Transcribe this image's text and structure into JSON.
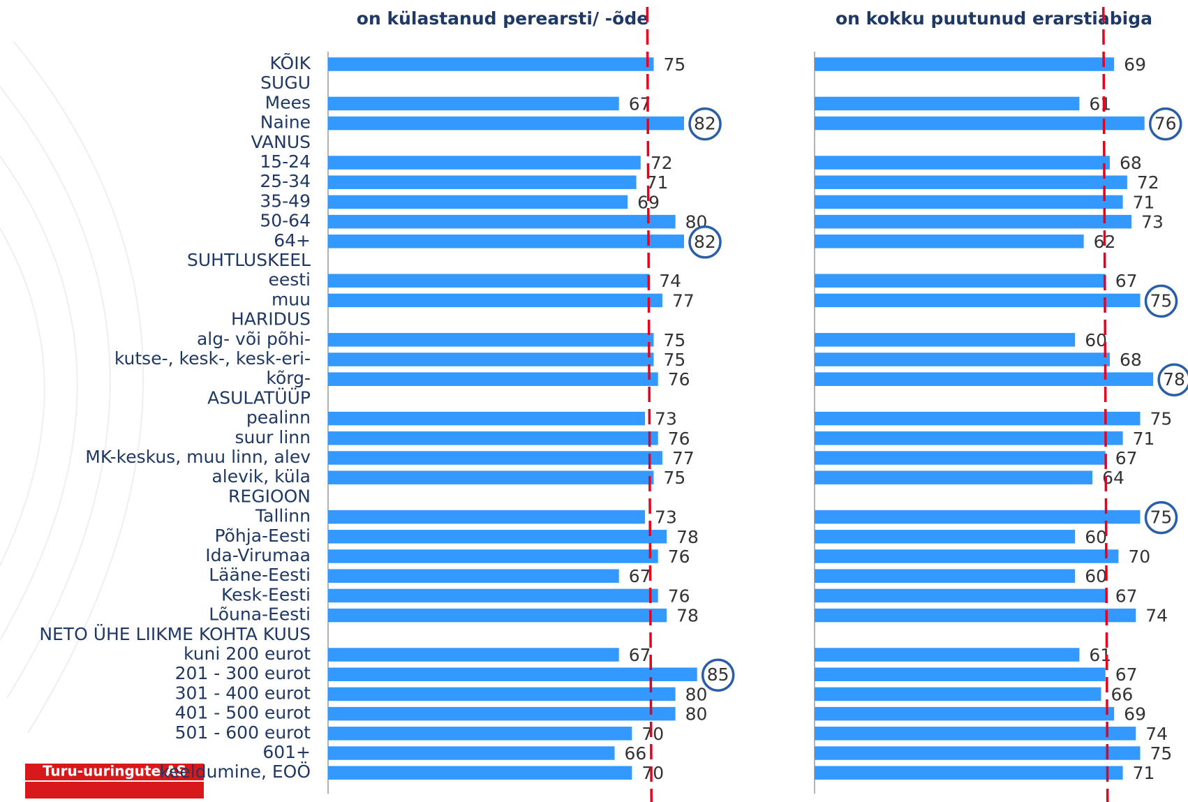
{
  "chart_data": [
    {
      "type": "bar",
      "orientation": "horizontal",
      "title": "on külastanud perearsti/ -õde",
      "categories": [
        "KÕIK",
        "SUGU",
        "Mees",
        "Naine",
        "VANUS",
        "15-24",
        "25-34",
        "35-49",
        "50-64",
        "64+",
        "SUHTLUSKEEL",
        "eesti",
        "muu",
        "HARIDUS",
        "alg- või põhi-",
        "kutse-, kesk-, kesk-eri-",
        "kõrg-",
        "ASULATÜÜP",
        "pealinn",
        "suur linn",
        "MK-keskus, muu linn, alev",
        "alevik, küla",
        "REGIOON",
        "Tallinn",
        "Põhja-Eesti",
        "Ida-Virumaa",
        "Lääne-Eesti",
        "Kesk-Eesti",
        "Lõuna-Eesti",
        "NETO ÜHE LIIKME KOHTA KUUS",
        "kuni 200 eurot",
        "201 - 300 eurot",
        "301 - 400 eurot",
        "401 - 500 eurot",
        "501 - 600 eurot",
        "601+",
        "keeldumine, EOÖ"
      ],
      "values": [
        75,
        null,
        67,
        82,
        null,
        72,
        71,
        69,
        80,
        82,
        null,
        74,
        77,
        null,
        75,
        75,
        76,
        null,
        73,
        76,
        77,
        75,
        null,
        73,
        78,
        76,
        67,
        76,
        78,
        null,
        67,
        85,
        80,
        80,
        70,
        66,
        70
      ],
      "color": "#3399ff",
      "xlim": [
        0,
        100
      ],
      "reference": 74,
      "reference_color": "#e8001c",
      "highlighted": [
        3,
        9,
        31
      ],
      "highlight_color": "#2a5fa8"
    },
    {
      "type": "bar",
      "orientation": "horizontal",
      "title": "on kokku puutunud erarstiabiga",
      "values": [
        69,
        null,
        61,
        76,
        null,
        68,
        72,
        71,
        73,
        62,
        null,
        67,
        75,
        null,
        60,
        68,
        78,
        null,
        75,
        71,
        67,
        64,
        null,
        75,
        60,
        70,
        60,
        67,
        74,
        null,
        61,
        67,
        66,
        69,
        74,
        75,
        71
      ],
      "color": "#3399ff",
      "xlim": [
        0,
        100
      ],
      "reference": 67,
      "reference_color": "#e8001c",
      "highlighted": [
        3,
        12,
        16,
        23
      ],
      "highlight_color": "#2a5fa8"
    }
  ],
  "logo": "Turu-uuringute AS"
}
